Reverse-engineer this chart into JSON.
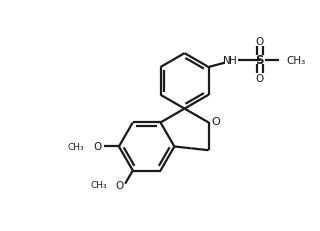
{
  "background_color": "#ffffff",
  "line_color": "#1a1a1a",
  "lw": 1.6,
  "figure_width": 3.2,
  "figure_height": 2.32,
  "dpi": 100,
  "xlim": [
    10,
    310
  ],
  "ylim": [
    10,
    222
  ]
}
